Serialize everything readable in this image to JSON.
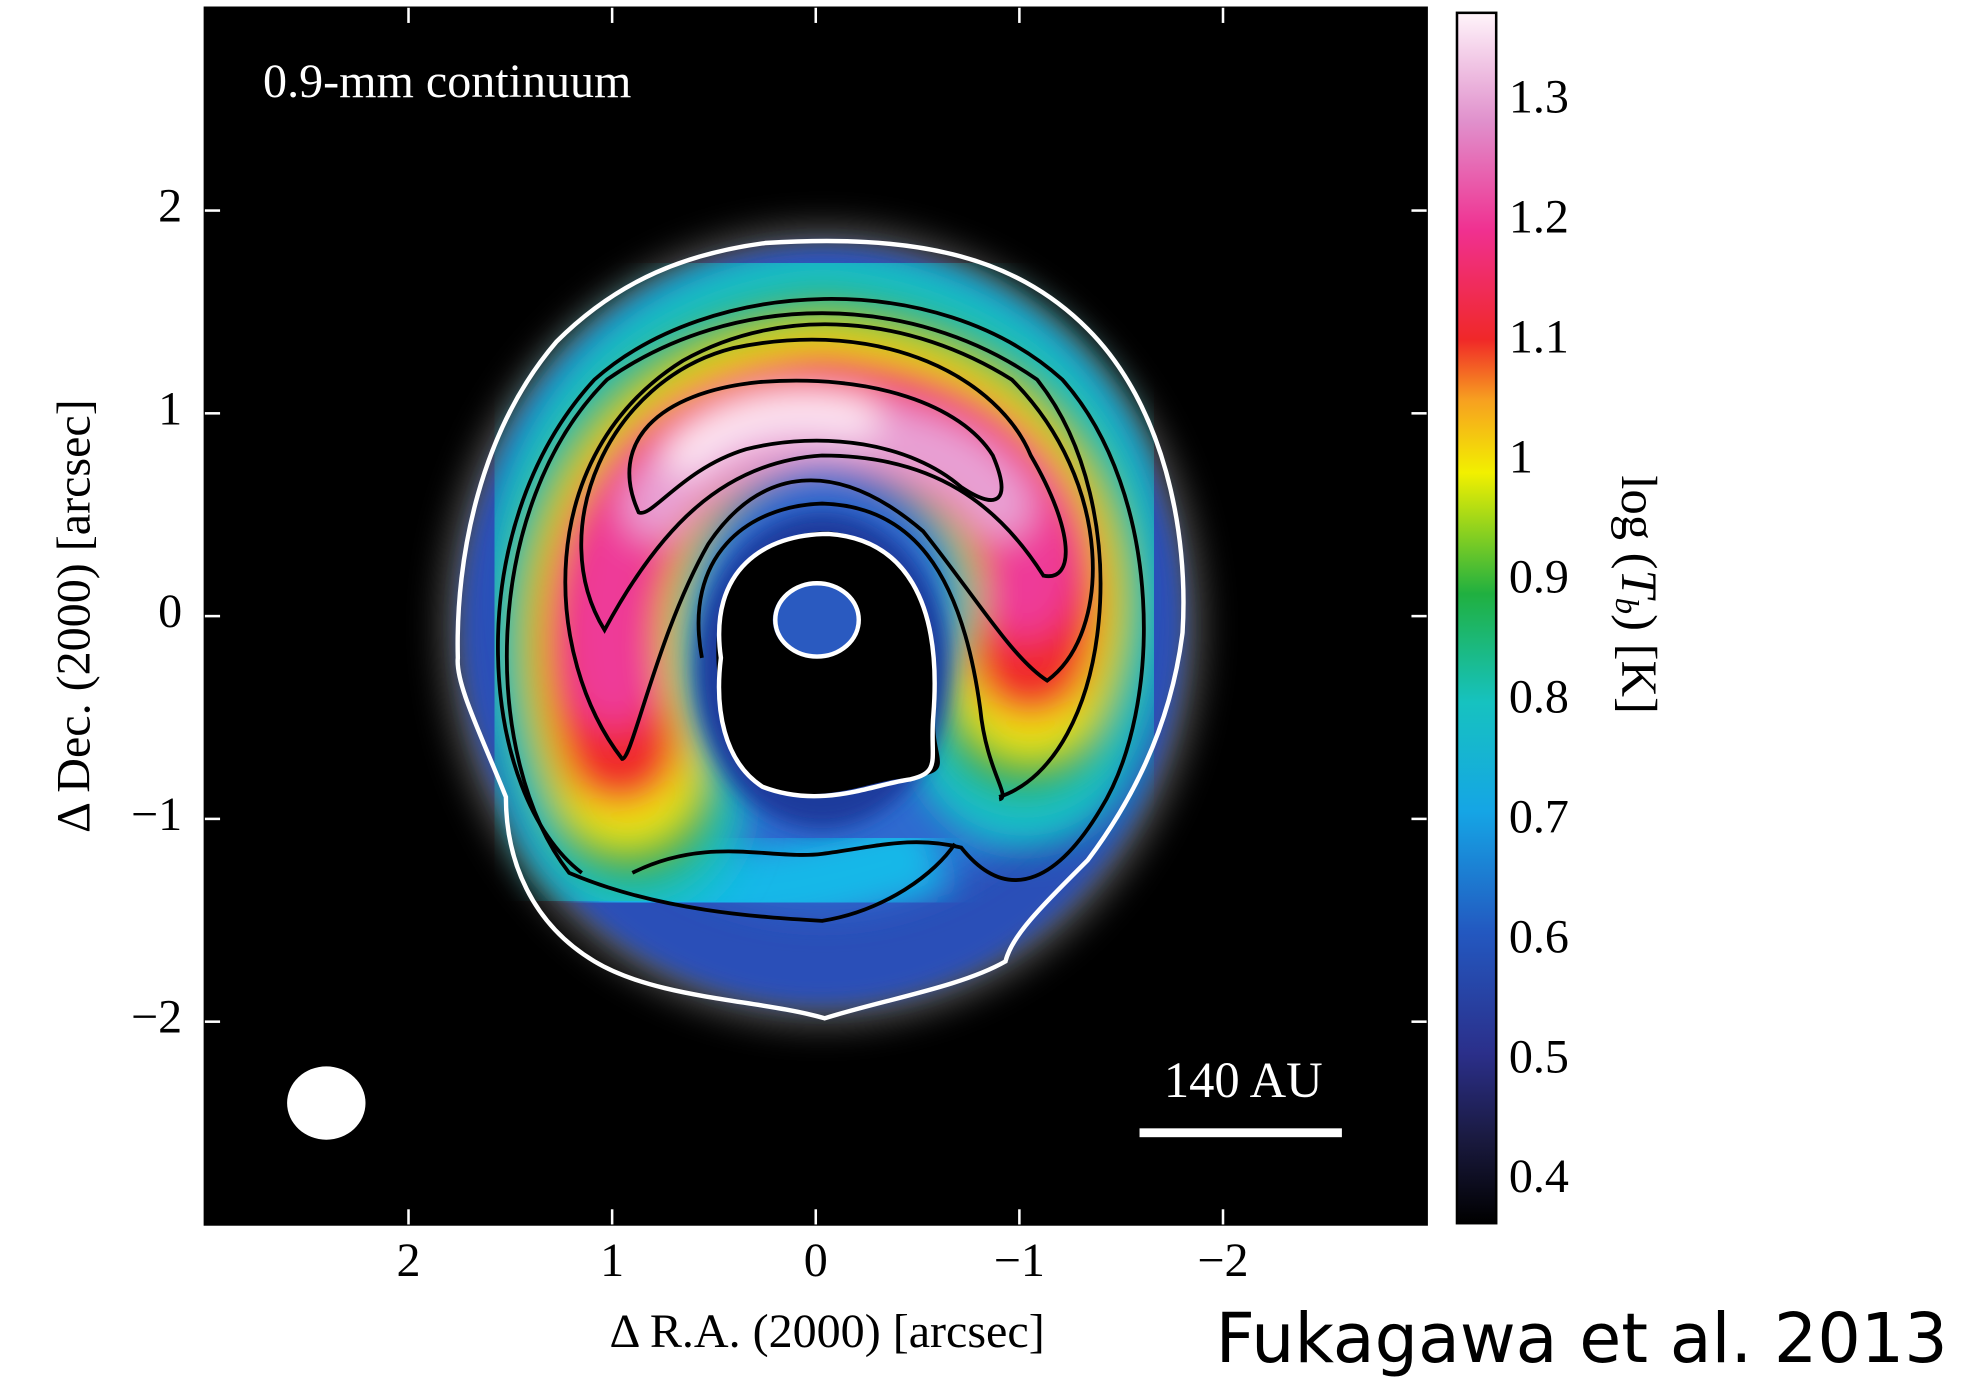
{
  "chart_data": {
    "type": "image",
    "title": "0.9-mm continuum",
    "xlabel": "Δ R.A. (2000) [arcsec]",
    "ylabel": "Δ Dec. (2000) [arcsec]",
    "xlim": [
      3,
      -3
    ],
    "xticks": [
      2,
      1,
      0,
      {
        "value": -1,
        "label": "−1"
      },
      {
        "value": -2,
        "label": "−2"
      }
    ],
    "ylim": [
      -3,
      3
    ],
    "yticks": [
      {
        "value": -2,
        "label": "−2"
      },
      {
        "value": -1,
        "label": "−1"
      },
      0,
      1,
      2
    ],
    "colorbar": {
      "label": {
        "prefix": "log (",
        "symbol": "T",
        "subscript": "b",
        "suffix": ") [K]"
      },
      "lim": [
        0.365,
        1.374
      ],
      "ticks": [
        0.4,
        0.5,
        0.6,
        0.7,
        0.8,
        0.9,
        1,
        1.1,
        1.2,
        1.3
      ]
    },
    "scale_bar": "140 AU"
  },
  "credit": "Fukagawa et al. 2013"
}
